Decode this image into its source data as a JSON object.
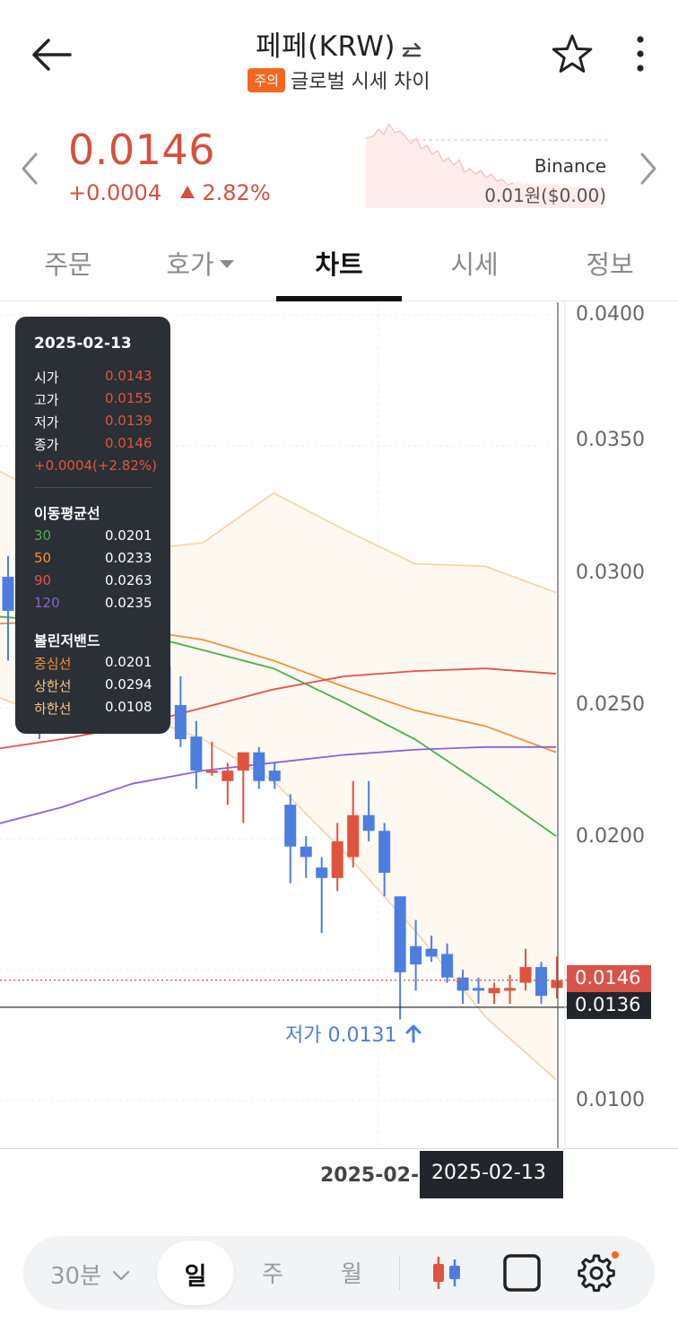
{
  "header": {
    "title": "페페(KRW)",
    "warning_badge": "주의",
    "subtitle": "글로벌 시세 차이"
  },
  "summary": {
    "price": "0.0146",
    "change": "+0.0004",
    "change_rate": "2.82%",
    "exchange": "Binance",
    "exchange_price": "0.01원($0.00)"
  },
  "tabs": [
    {
      "label": "주문"
    },
    {
      "label": "호가"
    },
    {
      "label": "차트"
    },
    {
      "label": "시세"
    },
    {
      "label": "정보"
    }
  ],
  "active_tab": "차트",
  "chart": {
    "y_ticks": [
      "0.0400",
      "0.0350",
      "0.0300",
      "0.0250",
      "0.0200",
      "0.0100"
    ],
    "current_price_tag": "0.0146",
    "crosshair_price_tag": "0.0136",
    "x_label": "2025-02-",
    "x_crosshair_label": "2025-02-13",
    "low_annotation": "저가 0.0131"
  },
  "tooltip": {
    "date": "2025-02-13",
    "ohlc": [
      {
        "label": "시가",
        "value": "0.0143"
      },
      {
        "label": "고가",
        "value": "0.0155"
      },
      {
        "label": "저가",
        "value": "0.0139"
      },
      {
        "label": "종가",
        "value": "0.0146"
      }
    ],
    "change": "+0.0004(+2.82%)",
    "ma_title": "이동평균선",
    "ma": [
      {
        "label": "30",
        "value": "0.0201",
        "color": "#4caf50"
      },
      {
        "label": "50",
        "value": "0.0233",
        "color": "#f0913a"
      },
      {
        "label": "90",
        "value": "0.0263",
        "color": "#e2524f"
      },
      {
        "label": "120",
        "value": "0.0235",
        "color": "#8a62d6"
      }
    ],
    "bb_title": "볼린저밴드",
    "bb": [
      {
        "label": "중심선",
        "value": "0.0201",
        "color": "#f0913a"
      },
      {
        "label": "상한선",
        "value": "0.0294",
        "color": "#f5c58a"
      },
      {
        "label": "하한선",
        "value": "0.0108",
        "color": "#f5c58a"
      }
    ]
  },
  "toolbar": {
    "interval": "30분",
    "day": "일",
    "week": "주",
    "month": "월"
  },
  "colors": {
    "up": "#e0543f",
    "down": "#4c7ee0",
    "warning": "#f26722"
  },
  "chart_data": {
    "type": "candlestick",
    "y_axis_ticks": [
      0.04,
      0.035,
      0.03,
      0.025,
      0.02,
      0.015,
      0.01
    ],
    "current_price": 0.0146,
    "crosshair_price": 0.0136,
    "marked_low": 0.0131,
    "last_candle": {
      "date": "2025-02-13",
      "open": 0.0143,
      "high": 0.0155,
      "low": 0.0139,
      "close": 0.0146
    },
    "candles": [
      {
        "open": 0.03,
        "high": 0.0308,
        "low": 0.0268,
        "close": 0.0287
      },
      {
        "open": 0.0275,
        "high": 0.029,
        "low": 0.0245,
        "close": 0.0255
      },
      {
        "open": 0.0262,
        "high": 0.028,
        "low": 0.0238,
        "close": 0.0249
      },
      {
        "open": 0.0252,
        "high": 0.0268,
        "low": 0.024,
        "close": 0.0245
      },
      {
        "open": 0.0255,
        "high": 0.0268,
        "low": 0.0243,
        "close": 0.025
      },
      {
        "open": 0.025,
        "high": 0.0268,
        "low": 0.024,
        "close": 0.026
      },
      {
        "open": 0.0262,
        "high": 0.0275,
        "low": 0.024,
        "close": 0.0268
      },
      {
        "open": 0.0258,
        "high": 0.0268,
        "low": 0.0245,
        "close": 0.0265
      },
      {
        "open": 0.0275,
        "high": 0.031,
        "low": 0.0255,
        "close": 0.0287
      },
      {
        "open": 0.0282,
        "high": 0.0286,
        "low": 0.0253,
        "close": 0.0266
      },
      {
        "open": 0.0266,
        "high": 0.0272,
        "low": 0.0245,
        "close": 0.0244
      },
      {
        "open": 0.0251,
        "high": 0.0262,
        "low": 0.0235,
        "close": 0.0238
      },
      {
        "open": 0.0239,
        "high": 0.0245,
        "low": 0.0219,
        "close": 0.0226
      },
      {
        "open": 0.0226,
        "high": 0.0237,
        "low": 0.0224,
        "close": 0.0226
      },
      {
        "open": 0.0222,
        "high": 0.0229,
        "low": 0.0213,
        "close": 0.0226
      },
      {
        "open": 0.0226,
        "high": 0.0233,
        "low": 0.0206,
        "close": 0.0233
      },
      {
        "open": 0.0233,
        "high": 0.0235,
        "low": 0.0219,
        "close": 0.0222
      },
      {
        "open": 0.0226,
        "high": 0.0229,
        "low": 0.0219,
        "close": 0.0222
      },
      {
        "open": 0.0213,
        "high": 0.0217,
        "low": 0.0183,
        "close": 0.0197
      },
      {
        "open": 0.0197,
        "high": 0.0201,
        "low": 0.0185,
        "close": 0.0193
      },
      {
        "open": 0.0189,
        "high": 0.0193,
        "low": 0.0164,
        "close": 0.0185
      },
      {
        "open": 0.0185,
        "high": 0.0206,
        "low": 0.018,
        "close": 0.0199
      },
      {
        "open": 0.0193,
        "high": 0.0222,
        "low": 0.0189,
        "close": 0.0209
      },
      {
        "open": 0.0209,
        "high": 0.0222,
        "low": 0.0199,
        "close": 0.0203
      },
      {
        "open": 0.0203,
        "high": 0.0206,
        "low": 0.0178,
        "close": 0.0187
      },
      {
        "open": 0.0178,
        "high": 0.0178,
        "low": 0.0131,
        "close": 0.0149
      },
      {
        "open": 0.0159,
        "high": 0.0169,
        "low": 0.0142,
        "close": 0.0152
      },
      {
        "open": 0.0158,
        "high": 0.0163,
        "low": 0.0153,
        "close": 0.0155
      },
      {
        "open": 0.0156,
        "high": 0.016,
        "low": 0.0145,
        "close": 0.0147
      },
      {
        "open": 0.0147,
        "high": 0.015,
        "low": 0.0137,
        "close": 0.0142
      },
      {
        "open": 0.0143,
        "high": 0.0147,
        "low": 0.0137,
        "close": 0.0142
      },
      {
        "open": 0.0141,
        "high": 0.0145,
        "low": 0.0137,
        "close": 0.0143
      },
      {
        "open": 0.0142,
        "high": 0.0148,
        "low": 0.0137,
        "close": 0.0143
      },
      {
        "open": 0.0145,
        "high": 0.0158,
        "low": 0.0142,
        "close": 0.0151
      },
      {
        "open": 0.0151,
        "high": 0.0153,
        "low": 0.0137,
        "close": 0.014
      },
      {
        "open": 0.0143,
        "high": 0.0155,
        "low": 0.0139,
        "close": 0.0146
      }
    ],
    "ma_lines": [
      {
        "name": "30",
        "color": "#4caf50",
        "values": [
          0.0285,
          0.0283,
          0.0279,
          0.0272,
          0.0265,
          0.0252,
          0.0238,
          0.022,
          0.0201
        ]
      },
      {
        "name": "50",
        "color": "#f0913a",
        "values": [
          0.0282,
          0.0283,
          0.028,
          0.0276,
          0.0268,
          0.0258,
          0.0249,
          0.0243,
          0.0233
        ]
      },
      {
        "name": "90",
        "color": "#e2524f",
        "values": [
          0.0234,
          0.0238,
          0.0243,
          0.025,
          0.0257,
          0.0262,
          0.0264,
          0.0265,
          0.0263
        ]
      },
      {
        "name": "120",
        "color": "#8a62d6",
        "values": [
          0.0205,
          0.0212,
          0.0221,
          0.0226,
          0.0229,
          0.0232,
          0.0234,
          0.0235,
          0.0235
        ]
      }
    ],
    "bollinger": {
      "upper": [
        0.0342,
        0.0328,
        0.031,
        0.0313,
        0.0332,
        0.0318,
        0.0305,
        0.0304,
        0.0294
      ],
      "lower": [
        0.0255,
        0.0245,
        0.0248,
        0.0238,
        0.0222,
        0.0195,
        0.0165,
        0.0132,
        0.0108
      ]
    }
  }
}
